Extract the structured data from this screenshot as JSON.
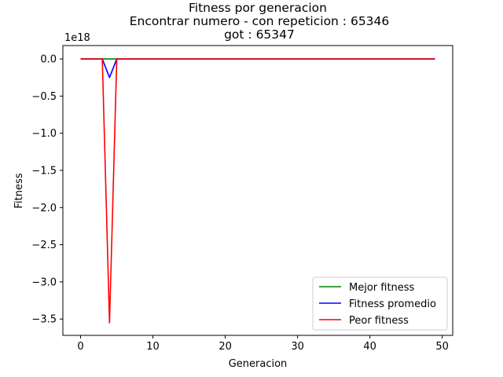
{
  "chart_data": {
    "type": "line",
    "title_lines": [
      "Fitness por generacion",
      "Encontrar numero - con repeticion : 65346",
      "got : 65347"
    ],
    "xlabel": "Generacion",
    "ylabel": "Fitness",
    "y_multiplier": "1e18",
    "xlim": [
      -2.45,
      51.45
    ],
    "ylim": [
      -3.72,
      0.18
    ],
    "x_ticks": [
      0,
      10,
      20,
      30,
      40,
      50
    ],
    "x_tick_labels": [
      "0",
      "10",
      "20",
      "30",
      "40",
      "50"
    ],
    "y_ticks": [
      0.0,
      -0.5,
      -1.0,
      -1.5,
      -2.0,
      -2.5,
      -3.0,
      -3.5
    ],
    "y_tick_labels": [
      "0.0",
      "−0.5",
      "−1.0",
      "−1.5",
      "−2.0",
      "−2.5",
      "−3.0",
      "−3.5"
    ],
    "x": [
      0,
      1,
      2,
      3,
      4,
      5,
      6,
      7,
      8,
      9,
      10,
      11,
      12,
      13,
      14,
      15,
      16,
      17,
      18,
      19,
      20,
      21,
      22,
      23,
      24,
      25,
      26,
      27,
      28,
      29,
      30,
      31,
      32,
      33,
      34,
      35,
      36,
      37,
      38,
      39,
      40,
      41,
      42,
      43,
      44,
      45,
      46,
      47,
      48,
      49
    ],
    "series": [
      {
        "name": "Mejor fitness",
        "color": "#008000",
        "values": [
          0,
          0,
          0,
          0,
          0,
          0,
          0,
          0,
          0,
          0,
          0,
          0,
          0,
          0,
          0,
          0,
          0,
          0,
          0,
          0,
          0,
          0,
          0,
          0,
          0,
          0,
          0,
          0,
          0,
          0,
          0,
          0,
          0,
          0,
          0,
          0,
          0,
          0,
          0,
          0,
          0,
          0,
          0,
          0,
          0,
          0,
          0,
          0,
          0,
          0
        ]
      },
      {
        "name": "Fitness promedio",
        "color": "#0000ff",
        "values": [
          0,
          0,
          0,
          0,
          -0.25,
          0,
          0,
          0,
          0,
          0,
          0,
          0,
          0,
          0,
          0,
          0,
          0,
          0,
          0,
          0,
          0,
          0,
          0,
          0,
          0,
          0,
          0,
          0,
          0,
          0,
          0,
          0,
          0,
          0,
          0,
          0,
          0,
          0,
          0,
          0,
          0,
          0,
          0,
          0,
          0,
          0,
          0,
          0,
          0,
          0
        ]
      },
      {
        "name": "Peor fitness",
        "color": "#ff0000",
        "values": [
          0,
          0,
          0,
          0,
          -3.55,
          0,
          0,
          0,
          0,
          0,
          0,
          0,
          0,
          0,
          0,
          0,
          0,
          0,
          0,
          0,
          0,
          0,
          0,
          0,
          0,
          0,
          0,
          0,
          0,
          0,
          0,
          0,
          0,
          0,
          0,
          0,
          0,
          0,
          0,
          0,
          0,
          0,
          0,
          0,
          0,
          0,
          0,
          0,
          0,
          0
        ]
      }
    ],
    "legend_position": "lower-right",
    "grid": false
  }
}
